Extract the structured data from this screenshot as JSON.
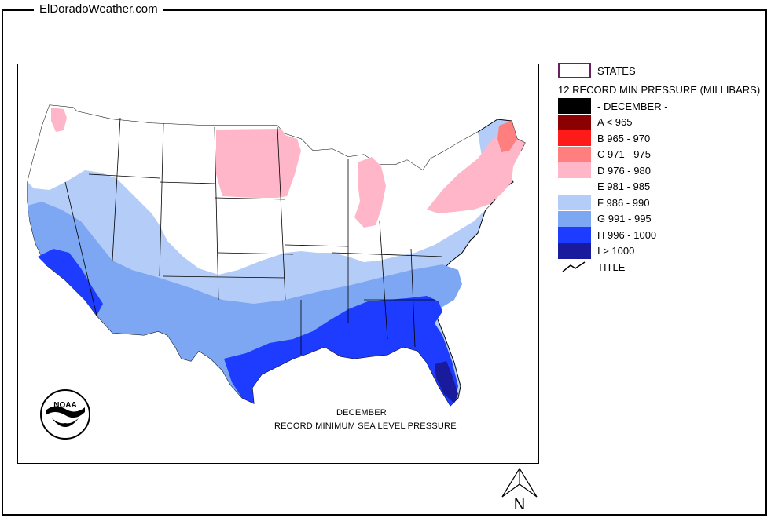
{
  "site_title": "ElDoradoWeather.com",
  "caption": {
    "month": "DECEMBER",
    "description": "RECORD  MINIMUM SEA LEVEL PRESSURE"
  },
  "legend": {
    "states_label": "STATES",
    "layer_title": "12 RECORD MIN PRESSURE (MILLIBARS)",
    "items": [
      {
        "label": "- DECEMBER -",
        "color": "#000000"
      },
      {
        "label": "A < 965",
        "color": "#8b0000"
      },
      {
        "label": "B 965 - 970",
        "color": "#ff1a1a"
      },
      {
        "label": "C 971 - 975",
        "color": "#ff7f7f"
      },
      {
        "label": "D 976 - 980",
        "color": "#ffb6c8"
      },
      {
        "label": "E 981 - 985",
        "color": "#ffffff"
      },
      {
        "label": "F 986 - 990",
        "color": "#b4cdf8"
      },
      {
        "label": "G 991 - 995",
        "color": "#7da7f2"
      },
      {
        "label": "H 996 - 1000",
        "color": "#1e3cff"
      },
      {
        "label": "I > 1000",
        "color": "#1a1a9c"
      }
    ],
    "title_entry": "TITLE"
  },
  "logo_text": "NOAA",
  "north_label": "N"
}
